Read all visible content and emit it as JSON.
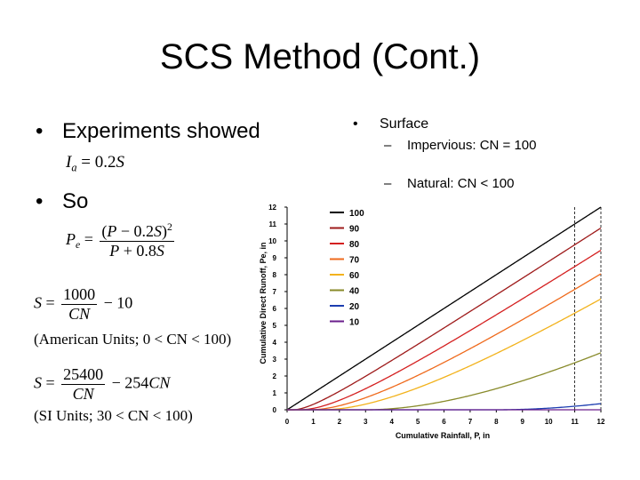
{
  "slide": {
    "title": "SCS Method (Cont.)",
    "left": {
      "bullet_1": "Experiments showed",
      "bullet_2": "So",
      "american_units_note": "(American Units; 0 < CN < 100)",
      "si_units_note": "(SI Units; 30 < CN < 100)"
    },
    "right": {
      "bullet": "Surface",
      "sub_items": [
        "Impervious:  CN = 100",
        "Natural:  CN < 100"
      ]
    },
    "colors": {
      "CN100": "#000000",
      "CN90": "#9e1b1b",
      "CN80": "#d42020",
      "CN70": "#ef6a1c",
      "CN60": "#f2b21c",
      "CN40": "#888a2a",
      "CN20": "#1c3db0",
      "CN10": "#6a1e8c"
    }
  },
  "chart_data": {
    "type": "line",
    "title": "",
    "xlabel": "Cumulative Rainfall, P, in",
    "ylabel": "Cumulative Direct Runoff, Pe, in",
    "xlim": [
      0,
      12
    ],
    "ylim": [
      0,
      12
    ],
    "xticks": [
      0,
      1,
      2,
      3,
      4,
      5,
      6,
      7,
      8,
      9,
      10,
      11,
      12
    ],
    "yticks": [
      0,
      1,
      2,
      3,
      4,
      5,
      6,
      7,
      8,
      9,
      10,
      11,
      12
    ],
    "grid": "dashed vertical lines at x=11 and x=12",
    "legend_position": "top-left",
    "formula": "Pe = (P - 0.2S)^2 / (P + 0.8S), S = 1000/CN - 10",
    "series": [
      {
        "name": "100",
        "cn": 100,
        "color": "#000000"
      },
      {
        "name": "90",
        "cn": 90,
        "color": "#9e1b1b"
      },
      {
        "name": "80",
        "cn": 80,
        "color": "#d42020"
      },
      {
        "name": "70",
        "cn": 70,
        "color": "#ef6a1c"
      },
      {
        "name": "60",
        "cn": 60,
        "color": "#f2b21c"
      },
      {
        "name": "40",
        "cn": 40,
        "color": "#888a2a"
      },
      {
        "name": "20",
        "cn": 20,
        "color": "#1c3db0"
      },
      {
        "name": "10",
        "cn": 10,
        "color": "#6a1e8c"
      }
    ]
  }
}
